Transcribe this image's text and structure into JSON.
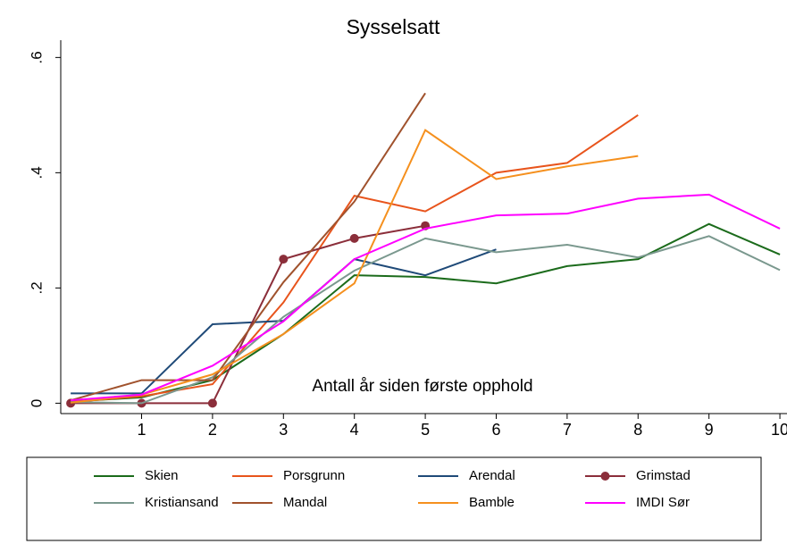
{
  "chart_data": {
    "type": "line",
    "title": "Sysselsatt",
    "x_label": "Antall år siden første opphold",
    "x": [
      0,
      1,
      2,
      3,
      4,
      5,
      6,
      7,
      8,
      9,
      10
    ],
    "xlim": [
      -0.14,
      10.1
    ],
    "xticks": [
      1,
      2,
      3,
      4,
      5,
      6,
      7,
      8,
      9,
      10
    ],
    "ylim": [
      -0.018,
      0.63
    ],
    "yticks": [
      0,
      {
        "value": 0.2,
        "label": ".2"
      },
      {
        "value": 0.4,
        "label": ".4"
      },
      {
        "value": 0.6,
        "label": ".6"
      }
    ],
    "series": [
      {
        "name": "Skien",
        "color": "#1b6b1b",
        "values": [
          0.003,
          0.01,
          0.04,
          0.12,
          0.222,
          0.219,
          0.208,
          0.238,
          0.25,
          0.311,
          0.258
        ]
      },
      {
        "name": "Porsgrunn",
        "color": "#e8541c",
        "values": [
          0.002,
          0.012,
          0.033,
          0.175,
          0.36,
          0.333,
          0.4,
          0.417,
          0.5,
          null,
          null
        ]
      },
      {
        "name": "Arendal",
        "color": "#1f4a78",
        "values": [
          0.017,
          0.017,
          0.137,
          0.143,
          0.25,
          0.222,
          0.267,
          null,
          null,
          null,
          null
        ]
      },
      {
        "name": "Grimstad",
        "color": "#8b2e3a",
        "marker": "circle",
        "values": [
          0,
          0,
          0,
          0.25,
          0.286,
          0.308,
          null,
          null,
          null,
          null,
          null
        ]
      },
      {
        "name": "Kristiansand",
        "color": "#7a988e",
        "values": [
          0.002,
          0.0,
          0.045,
          0.15,
          0.23,
          0.286,
          0.262,
          0.275,
          0.253,
          0.29,
          0.231
        ]
      },
      {
        "name": "Mandal",
        "color": "#a0522d",
        "values": [
          0.005,
          0.04,
          0.04,
          0.21,
          0.35,
          0.538,
          null,
          null,
          null,
          null,
          null
        ]
      },
      {
        "name": "Bamble",
        "color": "#f5901e",
        "values": [
          0.001,
          0.015,
          0.05,
          0.12,
          0.208,
          0.474,
          0.389,
          0.411,
          0.429,
          null,
          null
        ]
      },
      {
        "name": "IMDI Sør",
        "color": "#ff00ff",
        "values": [
          0.005,
          0.015,
          0.065,
          0.142,
          0.25,
          0.303,
          0.326,
          0.329,
          0.355,
          0.362,
          0.303
        ]
      }
    ]
  }
}
